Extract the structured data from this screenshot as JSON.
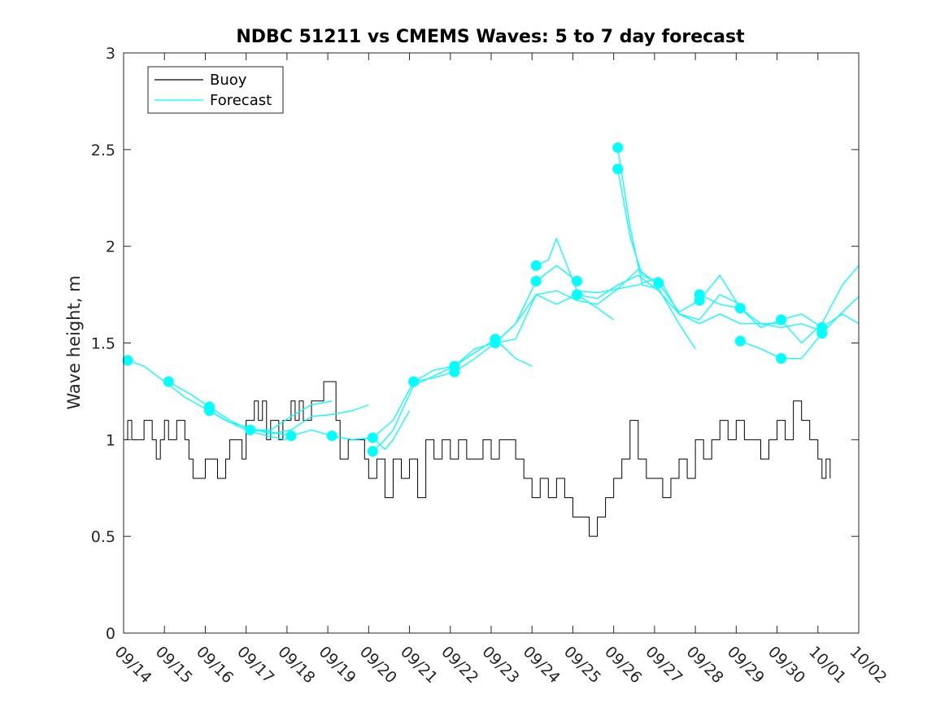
{
  "chart_data": {
    "type": "line",
    "title": "NDBC 51211 vs CMEMS Waves: 5 to 7 day forecast",
    "xlabel": "",
    "ylabel": "Wave height, m",
    "xlim": [
      0,
      18
    ],
    "ylim": [
      0,
      3
    ],
    "x_tick_labels": [
      "09/14",
      "09/15",
      "09/16",
      "09/17",
      "09/18",
      "09/19",
      "09/20",
      "09/21",
      "09/22",
      "09/23",
      "09/24",
      "09/25",
      "09/26",
      "09/27",
      "09/28",
      "09/29",
      "09/30",
      "10/01",
      "10/02"
    ],
    "y_ticks": [
      0,
      0.5,
      1,
      1.5,
      2,
      2.5,
      3
    ],
    "y_tick_labels": [
      "0",
      "0.5",
      "1",
      "1.5",
      "2",
      "2.5",
      "3"
    ],
    "legend": {
      "position": "top-left",
      "entries": [
        {
          "label": "Buoy",
          "color": "#000000"
        },
        {
          "label": "Forecast",
          "color": "#00ffff"
        }
      ]
    },
    "colors": {
      "buoy": "#000000",
      "forecast": "#00ffff"
    },
    "series": [
      {
        "name": "Buoy",
        "color": "#000000",
        "step": true,
        "x": [
          0,
          0.1,
          0.2,
          0.5,
          0.7,
          0.8,
          0.9,
          1,
          1.1,
          1.3,
          1.5,
          1.6,
          1.7,
          1.8,
          2,
          2.3,
          2.5,
          2.6,
          2.9,
          3,
          3.2,
          3.3,
          3.4,
          3.5,
          3.6,
          3.8,
          3.9,
          4.1,
          4.2,
          4.3,
          4.4,
          4.6,
          4.8,
          4.9,
          5.2,
          5.3,
          5.5,
          5.8,
          5.9,
          6,
          6.2,
          6.4,
          6.6,
          6.8,
          7,
          7.2,
          7.4,
          7.6,
          7.8,
          8,
          8.2,
          8.4,
          8.6,
          8.8,
          9,
          9.2,
          9.4,
          9.6,
          9.8,
          10,
          10.2,
          10.4,
          10.6,
          10.8,
          11,
          11.2,
          11.4,
          11.6,
          11.8,
          12,
          12.2,
          12.4,
          12.6,
          12.8,
          13,
          13.2,
          13.4,
          13.6,
          13.8,
          14,
          14.2,
          14.4,
          14.6,
          14.8,
          15,
          15.2,
          15.4,
          15.6,
          15.8,
          16,
          16.2,
          16.4,
          16.6,
          16.8,
          17,
          17.1,
          17.2,
          17.3
        ],
        "values": [
          1.0,
          1.1,
          1.0,
          1.1,
          1.0,
          0.9,
          1.0,
          1.1,
          1.0,
          1.1,
          1.0,
          0.9,
          0.8,
          0.8,
          0.9,
          0.8,
          0.9,
          1.0,
          0.9,
          1.1,
          1.2,
          1.1,
          1.2,
          1.0,
          1.1,
          1.0,
          1.1,
          1.2,
          1.1,
          1.2,
          1.1,
          1.2,
          1.2,
          1.3,
          1.1,
          0.9,
          1.0,
          1.0,
          0.9,
          0.8,
          0.9,
          0.7,
          0.9,
          0.8,
          0.9,
          0.7,
          1.0,
          0.9,
          1.0,
          0.9,
          1.0,
          0.9,
          0.9,
          1.0,
          0.9,
          1.0,
          1.0,
          0.9,
          0.8,
          0.7,
          0.8,
          0.7,
          0.8,
          0.7,
          0.6,
          0.6,
          0.5,
          0.6,
          0.7,
          0.8,
          0.9,
          1.1,
          0.9,
          0.8,
          0.8,
          0.7,
          0.8,
          0.9,
          0.8,
          1.0,
          0.9,
          1.0,
          1.1,
          1.0,
          1.1,
          1.0,
          1.0,
          0.9,
          1.0,
          1.1,
          1.0,
          1.2,
          1.1,
          1.0,
          0.9,
          0.8,
          0.9,
          0.8
        ]
      },
      {
        "name": "Forecast",
        "color": "#00ffff",
        "x": [
          0.1,
          0.5,
          1,
          1.5,
          2,
          2.5,
          3,
          3.5,
          4
        ],
        "values": [
          1.41,
          1.38,
          1.3,
          1.22,
          1.16,
          1.1,
          1.05,
          1.02,
          1.0
        ]
      },
      {
        "name": "Forecast",
        "color": "#00ffff",
        "x": [
          1.1,
          1.6,
          2.1,
          2.6,
          3.1,
          3.6,
          4.1,
          4.6,
          5.1
        ],
        "values": [
          1.3,
          1.24,
          1.17,
          1.1,
          1.05,
          1.05,
          1.12,
          1.18,
          1.2
        ]
      },
      {
        "name": "Forecast",
        "color": "#00ffff",
        "x": [
          2.1,
          2.6,
          3.1,
          3.6,
          4.1,
          4.6,
          5.1,
          5.6,
          6.0
        ],
        "values": [
          1.15,
          1.09,
          1.06,
          1.03,
          1.05,
          1.12,
          1.13,
          1.15,
          1.18
        ]
      },
      {
        "name": "Forecast",
        "color": "#00ffff",
        "x": [
          3.1,
          3.6,
          4.1,
          4.6,
          5.1,
          5.6,
          6.1,
          6.4,
          6.6,
          7.0
        ],
        "values": [
          1.05,
          1.04,
          1.02,
          1.05,
          1.02,
          1.0,
          1.01,
          0.95,
          1.0,
          1.15
        ]
      },
      {
        "name": "Forecast",
        "color": "#00ffff",
        "x": [
          5.1,
          5.6,
          6.1,
          6.6,
          7.1,
          7.6,
          8.1,
          8.6,
          9.1
        ],
        "values": [
          1.02,
          1.0,
          1.01,
          1.1,
          1.3,
          1.36,
          1.38,
          1.45,
          1.52
        ]
      },
      {
        "name": "Forecast",
        "color": "#00ffff",
        "x": [
          6.1,
          6.4,
          6.6,
          7.1,
          7.6,
          8.1,
          8.6,
          9.1,
          9.6,
          10.1,
          10.6,
          11.1
        ],
        "values": [
          0.94,
          1.0,
          1.05,
          1.28,
          1.33,
          1.38,
          1.47,
          1.5,
          1.6,
          1.82,
          1.9,
          1.82
        ]
      },
      {
        "name": "Forecast",
        "color": "#00ffff",
        "x": [
          7.1,
          7.6,
          8.1,
          8.6,
          9.1,
          9.6,
          10.1,
          10.6,
          11.1,
          11.6,
          12.0
        ],
        "values": [
          1.3,
          1.32,
          1.35,
          1.42,
          1.5,
          1.52,
          1.75,
          1.7,
          1.75,
          1.68,
          1.62
        ]
      },
      {
        "name": "Forecast",
        "color": "#00ffff",
        "x": [
          8.1,
          8.6,
          9.1,
          9.6,
          10.0
        ],
        "values": [
          1.38,
          1.45,
          1.52,
          1.42,
          1.38
        ]
      },
      {
        "name": "Forecast",
        "color": "#00ffff",
        "x": [
          9.1,
          9.6,
          10.1,
          10.6,
          11.1,
          11.6,
          12.1,
          12.6,
          13.1
        ],
        "values": [
          1.5,
          1.6,
          1.75,
          1.77,
          1.72,
          1.7,
          1.78,
          1.88,
          1.8
        ]
      },
      {
        "name": "Forecast",
        "color": "#00ffff",
        "x": [
          10.1,
          10.4,
          10.6,
          11.1,
          11.6,
          12.1,
          12.6,
          13.1,
          13.6,
          14.1,
          14.6,
          15.1
        ],
        "values": [
          1.9,
          1.93,
          2.04,
          1.77,
          1.76,
          1.78,
          1.8,
          1.84,
          1.65,
          1.62,
          1.75,
          1.7
        ]
      },
      {
        "name": "Forecast",
        "color": "#00ffff",
        "x": [
          11.1,
          11.6,
          12.1,
          12.6,
          13.1,
          13.6,
          14.1,
          14.6,
          15.1,
          15.6,
          16.1
        ],
        "values": [
          1.75,
          1.73,
          1.8,
          1.85,
          1.77,
          1.65,
          1.6,
          1.65,
          1.6,
          1.6,
          1.6
        ]
      },
      {
        "name": "Forecast",
        "color": "#00ffff",
        "x": [
          12.1,
          12.4,
          12.7,
          13.1,
          13.6,
          14.0
        ],
        "values": [
          2.51,
          2.1,
          1.8,
          1.78,
          1.6,
          1.47
        ]
      },
      {
        "name": "Forecast",
        "color": "#00ffff",
        "x": [
          12.1,
          12.4,
          12.7,
          13.1,
          13.6,
          14.1,
          14.6,
          15.1,
          15.6,
          16.1,
          16.6,
          17.1
        ],
        "values": [
          2.4,
          2.05,
          1.85,
          1.81,
          1.66,
          1.72,
          1.85,
          1.68,
          1.6,
          1.58,
          1.6,
          1.56
        ]
      },
      {
        "name": "Forecast",
        "color": "#00ffff",
        "x": [
          14.1,
          14.6,
          15.1,
          15.6,
          16.1,
          16.6,
          17.1,
          17.6,
          18.0
        ],
        "values": [
          1.75,
          1.7,
          1.68,
          1.58,
          1.62,
          1.65,
          1.58,
          1.65,
          1.6
        ]
      },
      {
        "name": "Forecast",
        "color": "#00ffff",
        "x": [
          15.1,
          15.6,
          16.1,
          16.6,
          17.1,
          17.6,
          18.0
        ],
        "values": [
          1.51,
          1.47,
          1.42,
          1.42,
          1.55,
          1.66,
          1.74
        ]
      },
      {
        "name": "Forecast",
        "color": "#00ffff",
        "x": [
          16.1,
          16.6,
          17.1,
          17.6,
          18.0
        ],
        "values": [
          1.62,
          1.5,
          1.6,
          1.8,
          1.9
        ]
      }
    ],
    "markers": {
      "color": "#00ffff",
      "points": [
        [
          0.1,
          1.41
        ],
        [
          1.1,
          1.3
        ],
        [
          2.1,
          1.17
        ],
        [
          2.1,
          1.15
        ],
        [
          3.1,
          1.05
        ],
        [
          4.1,
          1.02
        ],
        [
          5.1,
          1.02
        ],
        [
          6.1,
          1.01
        ],
        [
          6.1,
          0.94
        ],
        [
          7.1,
          1.3
        ],
        [
          8.1,
          1.38
        ],
        [
          8.1,
          1.35
        ],
        [
          9.1,
          1.52
        ],
        [
          9.1,
          1.5
        ],
        [
          10.1,
          1.9
        ],
        [
          10.1,
          1.82
        ],
        [
          11.1,
          1.82
        ],
        [
          11.1,
          1.75
        ],
        [
          12.1,
          2.51
        ],
        [
          12.1,
          2.4
        ],
        [
          13.1,
          1.81
        ],
        [
          14.1,
          1.75
        ],
        [
          14.1,
          1.72
        ],
        [
          15.1,
          1.68
        ],
        [
          15.1,
          1.51
        ],
        [
          16.1,
          1.62
        ],
        [
          16.1,
          1.42
        ],
        [
          17.1,
          1.58
        ],
        [
          17.1,
          1.55
        ]
      ]
    }
  }
}
